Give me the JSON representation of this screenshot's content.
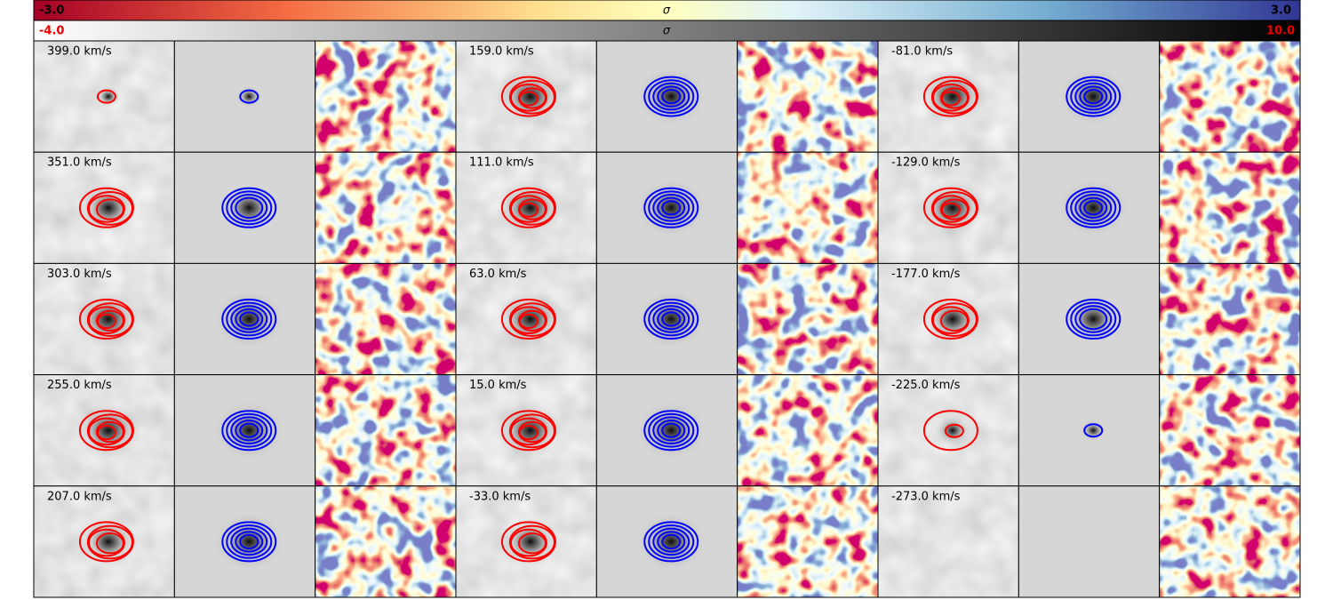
{
  "colorbars": [
    {
      "min_label": "-3.0",
      "label": "σ",
      "max_label": "3.0"
    },
    {
      "min_label": "-4.0",
      "label": "σ",
      "max_label": "10.0"
    }
  ],
  "panel_groups": [
    [
      "399.0 km/s",
      "351.0 km/s",
      "303.0 km/s",
      "255.0 km/s",
      "207.0 km/s"
    ],
    [
      "159.0 km/s",
      "111.0 km/s",
      "63.0 km/s",
      "15.0 km/s",
      "-33.0 km/s"
    ],
    [
      "-81.0 km/s",
      "-129.0 km/s",
      "-177.0 km/s",
      "-225.0 km/s",
      "-273.0 km/s"
    ]
  ]
}
